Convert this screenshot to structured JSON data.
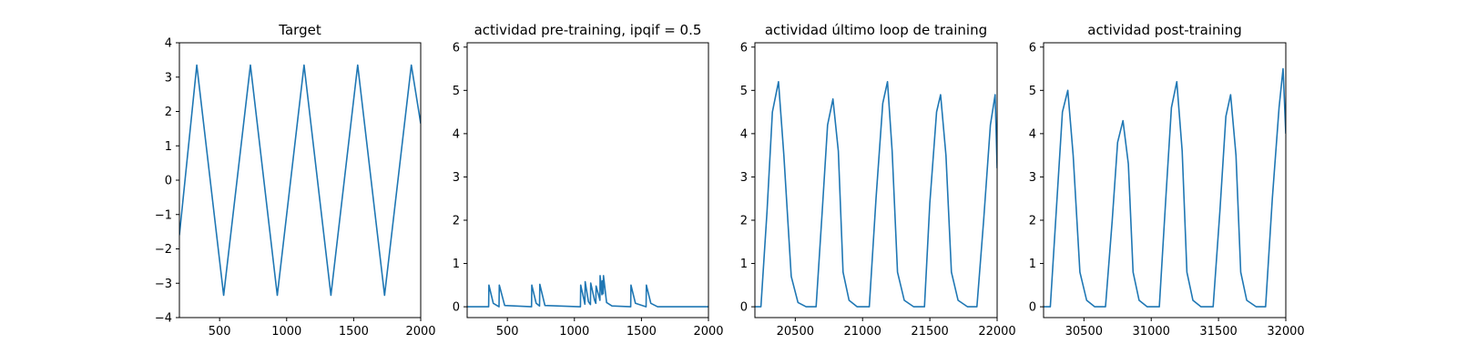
{
  "figure": {
    "line_color": "#1f77b4"
  },
  "chart_data": [
    {
      "type": "line",
      "title": "Target",
      "xlim": [
        200,
        2000
      ],
      "ylim": [
        -4,
        4
      ],
      "xticks": [
        "500",
        "1000",
        "1500",
        "2000"
      ],
      "yticks": [
        "−4",
        "−3",
        "−2",
        "−1",
        "0",
        "1",
        "2",
        "3",
        "4"
      ],
      "series": [
        {
          "x": [
            200,
            330,
            530,
            730,
            930,
            1130,
            1330,
            1530,
            1730,
            1930,
            2000
          ],
          "y": [
            -1.6,
            3.35,
            -3.35,
            3.35,
            -3.35,
            3.35,
            -3.35,
            3.35,
            -3.35,
            3.35,
            1.65
          ]
        }
      ]
    },
    {
      "type": "line",
      "title": "actividad pre-training, ipqif = 0.5",
      "xlim": [
        200,
        2000
      ],
      "ylim": [
        -0.25,
        6.1
      ],
      "xticks": [
        "500",
        "1000",
        "1500",
        "2000"
      ],
      "yticks": [
        "0",
        "1",
        "2",
        "3",
        "4",
        "5",
        "6"
      ],
      "series": [
        {
          "x": [
            200,
            360,
            362,
            395,
            438,
            440,
            480,
            680,
            682,
            715,
            740,
            742,
            780,
            1045,
            1047,
            1072,
            1078,
            1080,
            1105,
            1120,
            1122,
            1150,
            1160,
            1162,
            1185,
            1190,
            1192,
            1205,
            1207,
            1215,
            1217,
            1240,
            1280,
            1420,
            1422,
            1455,
            1535,
            1537,
            1570,
            1620,
            2000
          ],
          "y": [
            0,
            0,
            0.5,
            0.08,
            0,
            0.5,
            0.03,
            0,
            0.5,
            0.08,
            0.02,
            0.52,
            0.03,
            0,
            0.5,
            0.15,
            0.06,
            0.58,
            0.12,
            0.05,
            0.55,
            0.15,
            0.08,
            0.48,
            0.22,
            0.15,
            0.72,
            0.28,
            0.6,
            0.3,
            0.72,
            0.1,
            0.02,
            0,
            0.5,
            0.08,
            0,
            0.5,
            0.08,
            0,
            0
          ]
        }
      ]
    },
    {
      "type": "line",
      "title": "actividad último loop de training",
      "xlim": [
        20200,
        22000
      ],
      "ylim": [
        -0.25,
        6.1
      ],
      "xticks": [
        "20500",
        "21000",
        "21500",
        "22000"
      ],
      "yticks": [
        "0",
        "1",
        "2",
        "3",
        "4",
        "5",
        "6"
      ],
      "series": [
        {
          "x": [
            20200,
            20245,
            20290,
            20330,
            20375,
            20415,
            20470,
            20520,
            20580,
            20650,
            20655,
            20700,
            20740,
            20780,
            20820,
            20855,
            20900,
            20960,
            21040,
            21050,
            21100,
            21150,
            21185,
            21220,
            21260,
            21310,
            21380,
            21450,
            21460,
            21500,
            21550,
            21580,
            21620,
            21660,
            21710,
            21780,
            21840,
            21850,
            21900,
            21950,
            21985,
            22000
          ],
          "y": [
            0,
            0,
            2.2,
            4.5,
            5.2,
            3.5,
            0.7,
            0.1,
            0,
            0,
            0,
            2.2,
            4.2,
            4.8,
            3.6,
            0.8,
            0.15,
            0,
            0,
            0,
            2.5,
            4.7,
            5.2,
            3.6,
            0.8,
            0.15,
            0,
            0,
            0,
            2.4,
            4.5,
            4.9,
            3.5,
            0.8,
            0.15,
            0,
            0,
            0,
            2.0,
            4.2,
            4.9,
            3.2
          ]
        }
      ]
    },
    {
      "type": "line",
      "title": "actividad post-training",
      "xlim": [
        30200,
        32000
      ],
      "ylim": [
        -0.25,
        6.1
      ],
      "xticks": [
        "30500",
        "31000",
        "31500",
        "32000"
      ],
      "yticks": [
        "0",
        "1",
        "2",
        "3",
        "4",
        "5",
        "6"
      ],
      "series": [
        {
          "x": [
            30200,
            30250,
            30290,
            30340,
            30380,
            30420,
            30470,
            30520,
            30580,
            30650,
            30660,
            30710,
            30750,
            30790,
            30830,
            30865,
            30910,
            30970,
            31050,
            31060,
            31110,
            31150,
            31190,
            31230,
            31265,
            31310,
            31370,
            31450,
            31460,
            31510,
            31555,
            31590,
            31630,
            31665,
            31710,
            31780,
            31840,
            31850,
            31900,
            31950,
            31980,
            32000
          ],
          "y": [
            0,
            0,
            2.0,
            4.5,
            5.0,
            3.5,
            0.8,
            0.15,
            0,
            0,
            0,
            2.0,
            3.8,
            4.3,
            3.3,
            0.8,
            0.15,
            0,
            0,
            0,
            2.6,
            4.6,
            5.2,
            3.6,
            0.8,
            0.15,
            0,
            0,
            0,
            2.2,
            4.4,
            4.9,
            3.5,
            0.8,
            0.15,
            0,
            0,
            0,
            2.5,
            4.6,
            5.5,
            4.0
          ]
        }
      ]
    }
  ]
}
